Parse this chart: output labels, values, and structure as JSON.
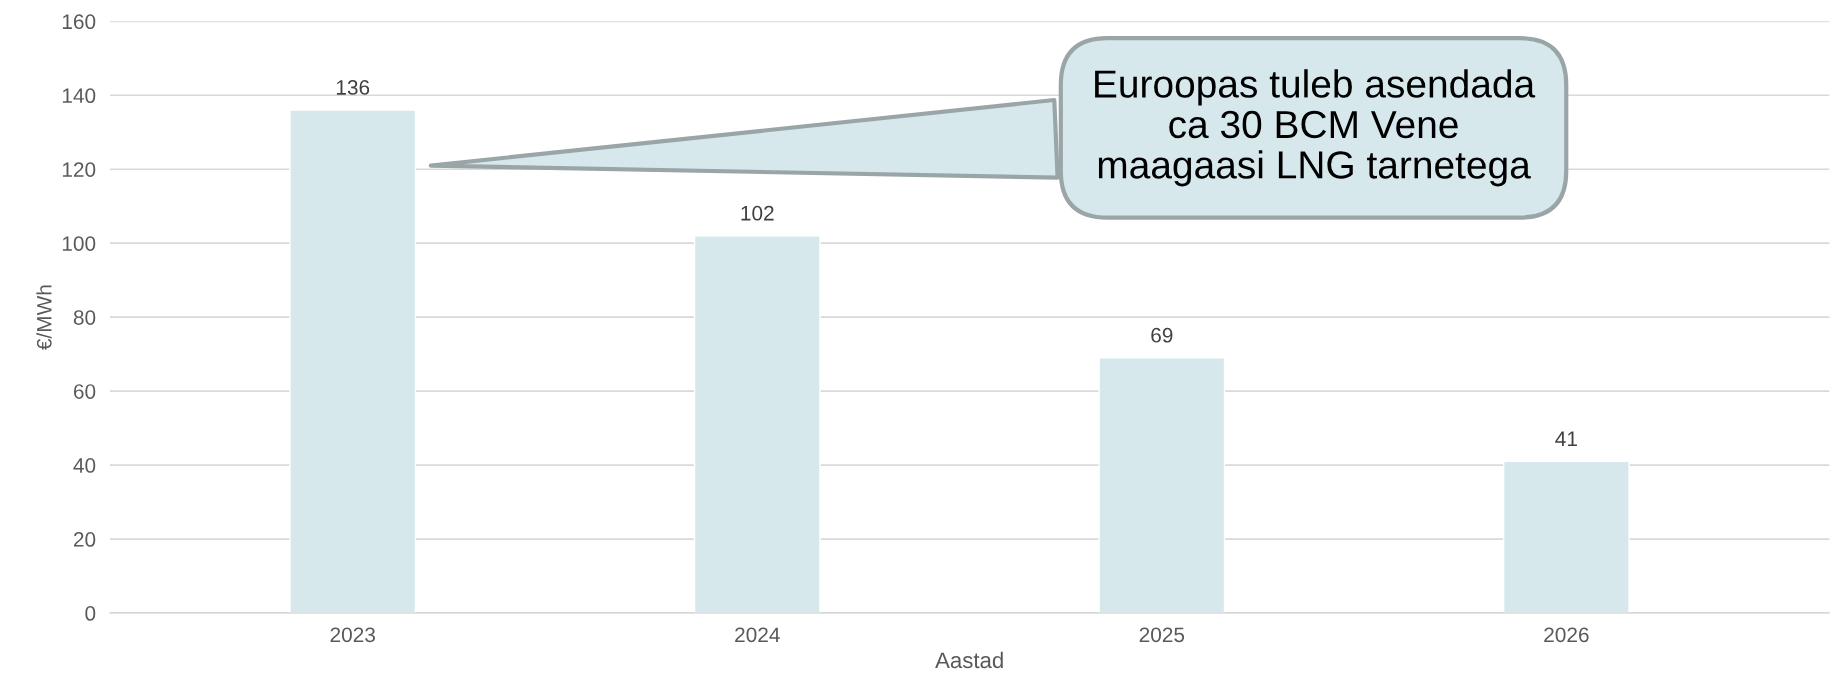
{
  "chart_data": {
    "type": "bar",
    "xlabel": "Aastad",
    "ylabel": "€/MWh",
    "categories": [
      "2023",
      "2024",
      "2025",
      "2026"
    ],
    "values": [
      136,
      102,
      69,
      41
    ],
    "color": "#d6e8ec",
    "ylim": [
      0,
      160
    ],
    "yticks": [
      0,
      20,
      40,
      60,
      80,
      100,
      120,
      140,
      160
    ],
    "grid": "y",
    "data_labels": true,
    "annotations": [
      "Euroopas tuleb asendada\nca 30 BCM Vene\nmaagaasi LNG tarnetega"
    ]
  }
}
